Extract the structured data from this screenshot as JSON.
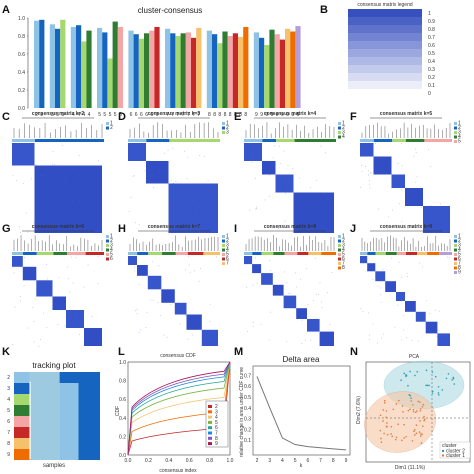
{
  "panels": {
    "A": "A",
    "B": "B",
    "C": "C",
    "D": "D",
    "E": "E",
    "F": "F",
    "G": "G",
    "H": "H",
    "I": "I",
    "J": "J",
    "K": "K",
    "L": "L",
    "M": "M",
    "N": "N"
  },
  "cluster_consensus": {
    "title": "cluster-consensus",
    "yticks": [
      "0.0",
      "0.2",
      "0.4",
      "0.6",
      "0.8",
      "1.0"
    ],
    "groups": [
      {
        "k": "2",
        "values": [
          0.97,
          0.98
        ],
        "colors": [
          "#8fc3e6",
          "#1565c0"
        ]
      },
      {
        "k": "3",
        "values": [
          0.93,
          0.88,
          0.98
        ],
        "colors": [
          "#8fc3e6",
          "#1565c0",
          "#a6d86f"
        ]
      },
      {
        "k": "4",
        "values": [
          0.9,
          0.92,
          0.74,
          0.86
        ],
        "colors": [
          "#8fc3e6",
          "#1565c0",
          "#a6d86f",
          "#2e7d32"
        ]
      },
      {
        "k": "5",
        "values": [
          0.89,
          0.84,
          0.55,
          0.96,
          0.9
        ],
        "colors": [
          "#8fc3e6",
          "#1565c0",
          "#a6d86f",
          "#2e7d32",
          "#f4a6a6"
        ]
      },
      {
        "k": "6",
        "values": [
          0.86,
          0.82,
          0.77,
          0.83,
          0.86,
          0.9
        ],
        "colors": [
          "#8fc3e6",
          "#1565c0",
          "#a6d86f",
          "#2e7d32",
          "#f4a6a6",
          "#c62828"
        ]
      },
      {
        "k": "7",
        "values": [
          0.88,
          0.83,
          0.8,
          0.83,
          0.84,
          0.78,
          0.89
        ],
        "colors": [
          "#8fc3e6",
          "#1565c0",
          "#a6d86f",
          "#2e7d32",
          "#f4a6a6",
          "#c62828",
          "#f5c26b"
        ]
      },
      {
        "k": "8",
        "values": [
          0.86,
          0.82,
          0.72,
          0.85,
          0.8,
          0.83,
          0.79,
          0.9
        ],
        "colors": [
          "#8fc3e6",
          "#1565c0",
          "#a6d86f",
          "#2e7d32",
          "#f4a6a6",
          "#c62828",
          "#f5c26b",
          "#ef6c00"
        ]
      },
      {
        "k": "9",
        "values": [
          0.84,
          0.78,
          0.7,
          0.87,
          0.82,
          0.76,
          0.88,
          0.85,
          0.91
        ],
        "colors": [
          "#8fc3e6",
          "#1565c0",
          "#a6d86f",
          "#2e7d32",
          "#f4a6a6",
          "#c62828",
          "#f5c26b",
          "#ef6c00",
          "#b39ddb"
        ]
      }
    ]
  },
  "legend_matrix": {
    "title": "consensus matrix legend",
    "ticks": [
      "1",
      "0.9",
      "0.8",
      "0.7",
      "0.6",
      "0.5",
      "0.4",
      "0.3",
      "0.2",
      "0.1",
      "0"
    ]
  },
  "matrices": [
    {
      "title": "consensus matrix k=2",
      "k": 2
    },
    {
      "title": "consensus matrix k=3",
      "k": 3
    },
    {
      "title": "consensus matrix k=4",
      "k": 4
    },
    {
      "title": "consensus matrix k=5",
      "k": 5
    },
    {
      "title": "consensus matrix k=6",
      "k": 6
    },
    {
      "title": "consensus matrix k=7",
      "k": 7
    },
    {
      "title": "consensus matrix k=8",
      "k": 8
    },
    {
      "title": "consensus matrix k=9",
      "k": 9
    }
  ],
  "cluster_colors": [
    "#8fc3e6",
    "#1565c0",
    "#a6d86f",
    "#2e7d32",
    "#f4a6a6",
    "#c62828",
    "#f5c26b",
    "#ef6c00",
    "#b39ddb"
  ],
  "tracking": {
    "title": "tracking plot",
    "xlabel": "samples",
    "rows": [
      "2",
      "3",
      "4",
      "5",
      "6",
      "7",
      "8",
      "9"
    ]
  },
  "cdf": {
    "title": "consensus CDF",
    "xlabel": "consensus index",
    "ylabel": "CDF",
    "xticks": [
      "0.0",
      "0.2",
      "0.4",
      "0.6",
      "0.8",
      "1.0"
    ],
    "yticks": [
      "0.0",
      "0.2",
      "0.4",
      "0.6",
      "0.8",
      "1.0"
    ],
    "legend": [
      "2",
      "3",
      "4",
      "5",
      "6",
      "7",
      "8",
      "9"
    ]
  },
  "delta": {
    "title": "Delta area",
    "xlabel": "k",
    "ylabel": "relative change in area under CDF curve",
    "x": [
      2,
      3,
      4,
      5,
      6,
      7,
      8,
      9
    ],
    "y": [
      0.69,
      0.4,
      0.12,
      0.06,
      0.04,
      0.03,
      0.02,
      0.01
    ],
    "xticks": [
      "2",
      "3",
      "4",
      "5",
      "6",
      "7",
      "8",
      "9"
    ],
    "yticks": [
      "0.1",
      "0.2",
      "0.3",
      "0.4",
      "0.5",
      "0.6",
      "0.7"
    ]
  },
  "pca": {
    "title": "PCA",
    "xlabel": "Dim1 (11.1%)",
    "ylabel": "Dim2 (7.6%)",
    "legend_title": "cluster",
    "legend": [
      "cluster 2",
      "cluster 1"
    ]
  }
}
